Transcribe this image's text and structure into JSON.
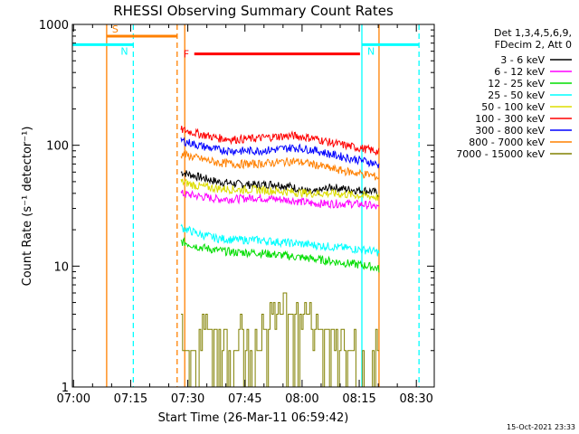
{
  "chart_data": {
    "type": "line",
    "title": "RHESSI Observing Summary Count Rates",
    "xlabel": "Start Time (26-Mar-11 06:59:42)",
    "ylabel": "Count Rate (s⁻¹ detector⁻¹)",
    "y_scale": "log",
    "ylim": [
      1,
      1000
    ],
    "xlim_minutes": [
      0,
      95
    ],
    "x_ticks": [
      "07:00",
      "07:15",
      "07:30",
      "07:45",
      "08:00",
      "08:15",
      "08:30"
    ],
    "y_ticks": [
      "1",
      "10",
      "100",
      "1000"
    ],
    "legend_header": [
      "Det 1,3,4,5,6,9,",
      "FDecim 2, Att 0"
    ],
    "legend_position": "top-right",
    "series": [
      {
        "name": "3 - 6 keV",
        "color": "#000000",
        "x": [
          28.5,
          33,
          38,
          43,
          48,
          53,
          58,
          63,
          68,
          73,
          78,
          80.5
        ],
        "values": [
          60,
          55,
          50,
          48,
          47,
          48,
          45,
          40,
          45,
          43,
          42,
          40
        ]
      },
      {
        "name": "6 - 12 keV",
        "color": "#ff00ff",
        "x": [
          28.5,
          33,
          38,
          43,
          48,
          53,
          58,
          63,
          68,
          73,
          78,
          80.5
        ],
        "values": [
          40,
          38,
          36,
          36,
          37,
          36,
          35,
          33,
          33,
          33,
          32,
          30
        ]
      },
      {
        "name": "12 - 25 keV",
        "color": "#00dd00",
        "x": [
          28.5,
          33,
          38,
          43,
          48,
          53,
          58,
          63,
          68,
          73,
          78,
          80.5
        ],
        "values": [
          16,
          14.5,
          13.5,
          13,
          13,
          12.5,
          12,
          11.5,
          11,
          10.5,
          10,
          9.5
        ]
      },
      {
        "name": "25 - 50 keV",
        "color": "#00ffff",
        "x": [
          28.5,
          33,
          38,
          43,
          48,
          53,
          58,
          63,
          68,
          73,
          78,
          80.5
        ],
        "values": [
          21,
          18.5,
          17,
          16.5,
          16.5,
          16,
          15.5,
          15,
          14.5,
          14,
          13.5,
          13
        ]
      },
      {
        "name": "50 - 100 keV",
        "color": "#dddd00",
        "x": [
          28.5,
          33,
          38,
          43,
          48,
          53,
          58,
          63,
          68,
          73,
          78,
          80.5
        ],
        "values": [
          50,
          46,
          44,
          43,
          43,
          42,
          41,
          40,
          40,
          39,
          38,
          37
        ]
      },
      {
        "name": "100 - 300 keV",
        "color": "#ff0000",
        "x": [
          28.5,
          33,
          38,
          43,
          48,
          53,
          58,
          63,
          68,
          73,
          78,
          80.5
        ],
        "values": [
          135,
          125,
          115,
          112,
          114,
          118,
          120,
          115,
          105,
          98,
          92,
          88
        ]
      },
      {
        "name": "300 - 800 keV",
        "color": "#0000ff",
        "x": [
          28.5,
          33,
          38,
          43,
          48,
          53,
          58,
          63,
          68,
          73,
          78,
          80.5
        ],
        "values": [
          110,
          100,
          92,
          90,
          90,
          92,
          96,
          92,
          84,
          78,
          73,
          68
        ]
      },
      {
        "name": "800 - 7000 keV",
        "color": "#ff8000",
        "x": [
          28.5,
          33,
          38,
          43,
          48,
          53,
          58,
          63,
          68,
          73,
          78,
          80.5
        ],
        "values": [
          85,
          78,
          72,
          70,
          70,
          72,
          74,
          70,
          64,
          60,
          57,
          54
        ]
      },
      {
        "name": "7000 - 15000 keV",
        "color": "#808000",
        "x": [
          28.5,
          32,
          36,
          40,
          44,
          48,
          52,
          56,
          60,
          64,
          68,
          72,
          76,
          80.5
        ],
        "values": [
          3,
          2,
          3,
          2,
          3,
          2,
          4,
          5,
          4,
          3,
          3,
          2,
          2,
          2
        ]
      }
    ],
    "annotations": [
      {
        "label": "S",
        "color": "#ff8000",
        "x_start": 9,
        "x_end": 27.5,
        "y": 800
      },
      {
        "label": "N",
        "color": "#00ffff",
        "x_start": 0,
        "x_end": 16,
        "y": 680
      },
      {
        "label": "N",
        "color": "#00ffff",
        "x_start": 76,
        "x_end": 91,
        "y": 680
      },
      {
        "label": "F",
        "color": "#ff0000",
        "x_start": 32,
        "x_end": 75.5,
        "y": 570
      }
    ],
    "vertical_lines": [
      {
        "x": 9,
        "color": "#ff8000",
        "style": "solid"
      },
      {
        "x": 16,
        "color": "#00ffff",
        "style": "dashed"
      },
      {
        "x": 27.5,
        "color": "#ff8000",
        "style": "dashed"
      },
      {
        "x": 29.5,
        "color": "#ff8000",
        "style": "solid"
      },
      {
        "x": 76,
        "color": "#00ffff",
        "style": "solid"
      },
      {
        "x": 80.5,
        "color": "#ff8000",
        "style": "solid"
      },
      {
        "x": 91,
        "color": "#00ffff",
        "style": "dashed"
      }
    ],
    "footer": "15-Oct-2021 23:33"
  }
}
